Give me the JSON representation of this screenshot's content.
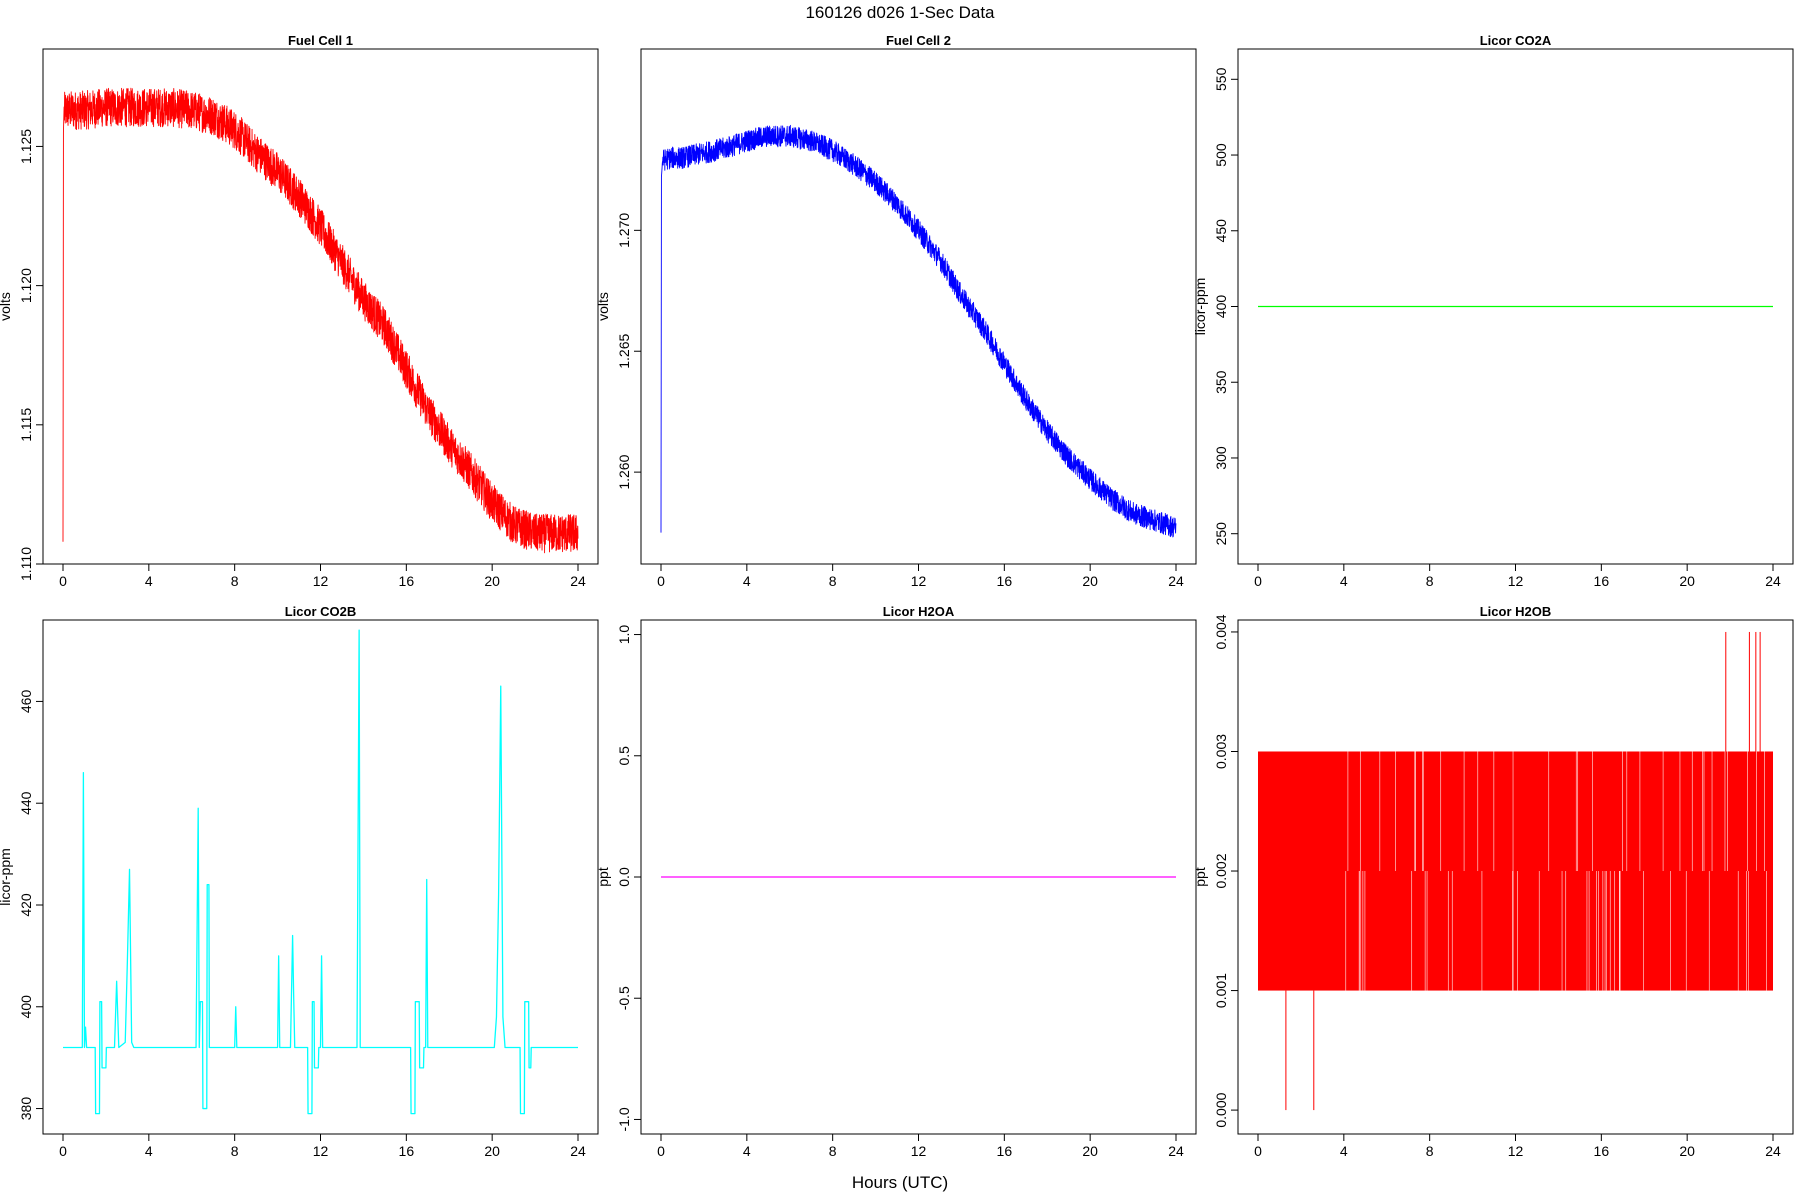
{
  "figure_title": "160126   d026   1-Sec Data",
  "x_axis_label": "Hours (UTC)",
  "chart_data": [
    {
      "type": "line",
      "title": "Fuel Cell 1",
      "ylabel": "volts",
      "xlim": [
        0,
        24
      ],
      "ylim": [
        1.11,
        1.1285
      ],
      "x_ticks": [
        0,
        4,
        8,
        12,
        16,
        20,
        24
      ],
      "x_tick_labels": [
        "0",
        "4",
        "8",
        "12",
        "16",
        "20",
        "24"
      ],
      "y_ticks": [
        1.11,
        1.115,
        1.12,
        1.125
      ],
      "y_tick_labels": [
        "1.110",
        "1.115",
        "1.120",
        "1.125"
      ],
      "color": "#ff0000",
      "noise": 0.0007,
      "series": [
        {
          "x": [
            0,
            0.02,
            0.05,
            0.1,
            0.5,
            1,
            2,
            3,
            4,
            5,
            6,
            7,
            8,
            9,
            10,
            11,
            12,
            13,
            14,
            15,
            16,
            17,
            18,
            19,
            20,
            21,
            22,
            23,
            24
          ],
          "values": [
            1.1108,
            1.1255,
            1.1262,
            1.1263,
            1.1263,
            1.1263,
            1.1264,
            1.1264,
            1.1264,
            1.1264,
            1.1263,
            1.1261,
            1.1256,
            1.1248,
            1.1241,
            1.1232,
            1.1221,
            1.1208,
            1.1195,
            1.1185,
            1.117,
            1.1155,
            1.1143,
            1.1133,
            1.1122,
            1.1114,
            1.1111,
            1.1111,
            1.1111
          ]
        }
      ]
    },
    {
      "type": "line",
      "title": "Fuel Cell 2",
      "ylabel": "volts",
      "xlim": [
        0,
        24
      ],
      "ylim": [
        1.2562,
        1.2775
      ],
      "x_ticks": [
        0,
        4,
        8,
        12,
        16,
        20,
        24
      ],
      "x_tick_labels": [
        "0",
        "4",
        "8",
        "12",
        "16",
        "20",
        "24"
      ],
      "y_ticks": [
        1.26,
        1.265,
        1.27
      ],
      "y_tick_labels": [
        "1.260",
        "1.265",
        "1.270"
      ],
      "color": "#0000ff",
      "noise": 0.00045,
      "series": [
        {
          "x": [
            0,
            0.02,
            0.05,
            0.1,
            0.5,
            1,
            2,
            3,
            4,
            5,
            6,
            7,
            8,
            9,
            10,
            11,
            12,
            13,
            14,
            15,
            16,
            17,
            18,
            19,
            20,
            21,
            22,
            23,
            24
          ],
          "values": [
            1.2575,
            1.2722,
            1.2728,
            1.2729,
            1.273,
            1.273,
            1.2732,
            1.2734,
            1.2737,
            1.2739,
            1.2739,
            1.2737,
            1.2733,
            1.2727,
            1.272,
            1.2711,
            1.27,
            1.2688,
            1.2673,
            1.266,
            1.2645,
            1.263,
            1.2617,
            1.2606,
            1.2597,
            1.2589,
            1.2583,
            1.258,
            1.2577
          ]
        }
      ]
    },
    {
      "type": "line",
      "title": "Licor CO2A",
      "ylabel": "licor-ppm",
      "xlim": [
        0,
        24
      ],
      "ylim": [
        230,
        570
      ],
      "x_ticks": [
        0,
        4,
        8,
        12,
        16,
        20,
        24
      ],
      "x_tick_labels": [
        "0",
        "4",
        "8",
        "12",
        "16",
        "20",
        "24"
      ],
      "y_ticks": [
        250,
        300,
        350,
        400,
        450,
        500,
        550
      ],
      "y_tick_labels": [
        "250",
        "300",
        "350",
        "400",
        "450",
        "500",
        "550"
      ],
      "color": "#00ff00",
      "noise": 0,
      "series": [
        {
          "x": [
            0,
            24
          ],
          "values": [
            400,
            400
          ]
        }
      ]
    },
    {
      "type": "line",
      "title": "Licor CO2B",
      "ylabel": "licor-ppm",
      "xlim": [
        0,
        24
      ],
      "ylim": [
        375,
        476
      ],
      "x_ticks": [
        0,
        4,
        8,
        12,
        16,
        20,
        24
      ],
      "x_tick_labels": [
        "0",
        "4",
        "8",
        "12",
        "16",
        "20",
        "24"
      ],
      "y_ticks": [
        380,
        400,
        420,
        440,
        460
      ],
      "y_tick_labels": [
        "380",
        "400",
        "420",
        "440",
        "460"
      ],
      "color": "#00ffff",
      "noise": 0,
      "series": [
        {
          "x": [
            0,
            0.9,
            0.95,
            1.0,
            1.05,
            1.1,
            1.3,
            1.5,
            1.52,
            1.7,
            1.72,
            1.8,
            1.82,
            2.0,
            2.02,
            2.4,
            2.5,
            2.6,
            2.9,
            3.0,
            3.1,
            3.2,
            3.3,
            6.2,
            6.3,
            6.35,
            6.4,
            6.5,
            6.52,
            6.7,
            6.72,
            6.8,
            6.82,
            7.0,
            7.02,
            8.0,
            8.05,
            8.1,
            10.0,
            10.05,
            10.1,
            10.6,
            10.7,
            10.75,
            10.8,
            11.4,
            11.42,
            11.6,
            11.62,
            11.7,
            11.72,
            11.9,
            11.92,
            12.0,
            12.05,
            12.1,
            13.7,
            13.8,
            13.85,
            13.9,
            16.2,
            16.22,
            16.4,
            16.42,
            16.6,
            16.62,
            16.8,
            16.82,
            16.9,
            16.95,
            17.0,
            20.1,
            20.2,
            20.3,
            20.4,
            20.5,
            20.6,
            20.7,
            21.3,
            21.32,
            21.5,
            21.52,
            21.7,
            21.72,
            21.8,
            21.82,
            22.0,
            22.02,
            24
          ],
          "values": [
            392,
            392,
            446,
            392,
            396,
            392,
            392,
            392,
            379,
            379,
            401,
            401,
            388,
            388,
            392,
            392,
            405,
            392,
            393,
            409,
            427,
            393,
            392,
            392,
            439,
            392,
            401,
            401,
            380,
            380,
            424,
            424,
            392,
            392,
            392,
            392,
            400,
            392,
            392,
            410,
            392,
            392,
            414,
            402,
            392,
            392,
            379,
            379,
            401,
            401,
            388,
            388,
            392,
            392,
            410,
            392,
            392,
            474,
            392,
            392,
            392,
            379,
            379,
            401,
            401,
            388,
            388,
            392,
            392,
            425,
            392,
            392,
            398,
            422,
            463,
            398,
            392,
            392,
            392,
            379,
            379,
            401,
            401,
            388,
            388,
            392,
            392,
            392,
            392
          ]
        }
      ]
    },
    {
      "type": "line",
      "title": "Licor H2OA",
      "ylabel": "ppt",
      "xlim": [
        0,
        24
      ],
      "ylim": [
        -1.06,
        1.06
      ],
      "x_ticks": [
        0,
        4,
        8,
        12,
        16,
        20,
        24
      ],
      "x_tick_labels": [
        "0",
        "4",
        "8",
        "12",
        "16",
        "20",
        "24"
      ],
      "y_ticks": [
        -1.0,
        -0.5,
        0.0,
        0.5,
        1.0
      ],
      "y_tick_labels": [
        "-1.0",
        "-0.5",
        "0.0",
        "0.5",
        "1.0"
      ],
      "color": "#ff00ff",
      "noise": 0,
      "series": [
        {
          "x": [
            0,
            24
          ],
          "values": [
            0,
            0
          ]
        }
      ]
    },
    {
      "type": "line",
      "title": "Licor H2OB",
      "ylabel": "ppt",
      "xlim": [
        0,
        24
      ],
      "ylim": [
        -0.0002,
        0.0041
      ],
      "x_ticks": [
        0,
        4,
        8,
        12,
        16,
        20,
        24
      ],
      "x_tick_labels": [
        "0",
        "4",
        "8",
        "12",
        "16",
        "20",
        "24"
      ],
      "y_ticks": [
        0.0,
        0.001,
        0.002,
        0.003,
        0.004
      ],
      "y_tick_labels": [
        "0.000",
        "0.001",
        "0.002",
        "0.003",
        "0.004"
      ],
      "color": "#ff0000",
      "noise": 0,
      "band_low": 0.001,
      "band_high": 0.003,
      "spikes_high": [
        21.8,
        22.9,
        23.2,
        23.4
      ],
      "spike_high_value": 0.004,
      "spikes_low": [
        1.3,
        2.6
      ],
      "spike_low_value": 0.0,
      "series": [
        {
          "x": [
            0,
            24
          ],
          "values": [
            0.002,
            0.002
          ]
        }
      ]
    }
  ]
}
